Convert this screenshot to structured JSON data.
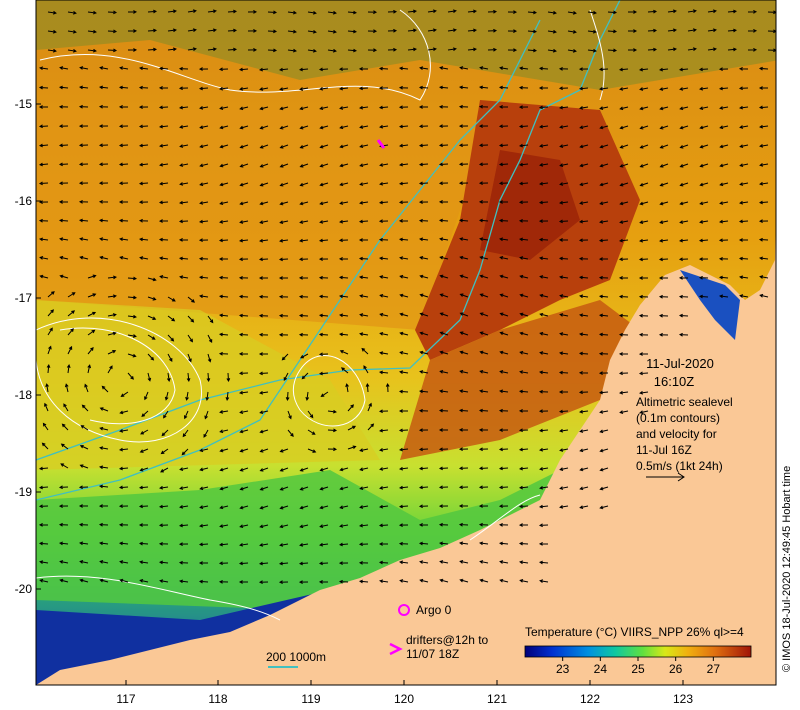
{
  "axes": {
    "lon_ticks": [
      "117",
      "118",
      "119",
      "120",
      "121",
      "122",
      "123"
    ],
    "lat_ticks": [
      "-15",
      "-16",
      "-17",
      "-18",
      "-19",
      "-20"
    ]
  },
  "date_block": {
    "date": "11-Jul-2020",
    "time": "16:10Z"
  },
  "note_lines": [
    "Altimetric sealevel",
    "(0.1m contours)",
    "and velocity for",
    "11-Jul 16Z",
    "0.5m/s (1kt 24h)"
  ],
  "legend": {
    "argo_label": "Argo 0",
    "drifters_line1": "drifters@12h to",
    "drifters_line2": "11/07 18Z",
    "isobath_label": "200  1000m",
    "colorbar_title": "Temperature (°C) VIIRS_NPP 26% ql>=4",
    "colorbar_ticks": [
      "23",
      "24",
      "25",
      "26",
      "27"
    ]
  },
  "credit": "© IMOS 18-Jul-2020 12:49:45 Hobart time",
  "colors": {
    "land": "#fac896",
    "argo_marker": "#ff00ff",
    "isobath": "#40c0c0",
    "contour": "#ffffff",
    "vector": "#000000"
  },
  "map_data": {
    "colorbar_range": [
      22,
      28
    ],
    "lon_range": [
      116.1,
      124.0
    ],
    "lat_range": [
      -14.3,
      -21.0
    ]
  }
}
